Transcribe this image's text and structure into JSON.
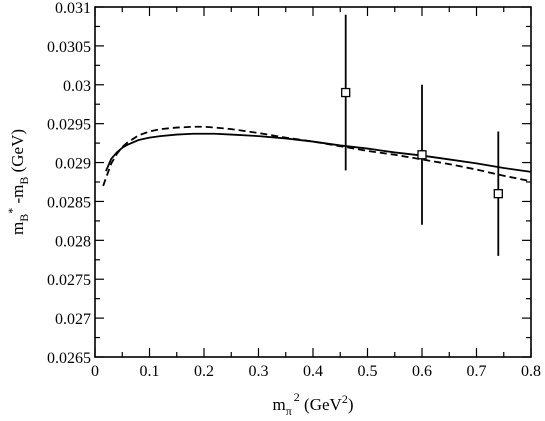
{
  "chart_data": {
    "type": "line",
    "xlim": [
      0,
      0.8
    ],
    "ylim": [
      0.0265,
      0.031
    ],
    "x_ticks": [
      "0",
      "0.1",
      "0.2",
      "0.3",
      "0.4",
      "0.5",
      "0.6",
      "0.7",
      "0.8"
    ],
    "y_ticks": [
      "0.0265",
      "0.027",
      "0.0275",
      "0.028",
      "0.0285",
      "0.029",
      "0.0295",
      "0.03",
      "0.0305",
      "0.031"
    ],
    "xlabel": {
      "base": "m",
      "sub": "π",
      "sup": "2",
      "rest": " (GeV",
      "rest_sup": "2",
      "close": ")"
    },
    "ylabel": {
      "p1": "m",
      "sub1": "B",
      "sup1": "*",
      "p2": " -m",
      "sub2": "B",
      "p3": " (GeV)"
    },
    "grid": false,
    "series": [
      {
        "style": "solid",
        "x": [
          0.02,
          0.03,
          0.04,
          0.05,
          0.06,
          0.08,
          0.1,
          0.12,
          0.15,
          0.18,
          0.2,
          0.22,
          0.25,
          0.3,
          0.35,
          0.4,
          0.45,
          0.5,
          0.55,
          0.6,
          0.65,
          0.7,
          0.75,
          0.8
        ],
        "y": [
          0.02889,
          0.02905,
          0.02913,
          0.02919,
          0.02923,
          0.02929,
          0.02932,
          0.02934,
          0.02936,
          0.02937,
          0.02937,
          0.02937,
          0.02936,
          0.02934,
          0.02931,
          0.02927,
          0.02922,
          0.02918,
          0.02913,
          0.02909,
          0.02904,
          0.02899,
          0.02893,
          0.02888
        ]
      },
      {
        "style": "dashed",
        "x": [
          0.015,
          0.02,
          0.03,
          0.04,
          0.05,
          0.06,
          0.08,
          0.1,
          0.12,
          0.15,
          0.18,
          0.2,
          0.22,
          0.25,
          0.3,
          0.35,
          0.4,
          0.45,
          0.5,
          0.55,
          0.6,
          0.65,
          0.7,
          0.75,
          0.8
        ],
        "y": [
          0.0287,
          0.0288,
          0.02899,
          0.02911,
          0.0292,
          0.02926,
          0.02935,
          0.0294,
          0.02943,
          0.02945,
          0.02946,
          0.02946,
          0.02945,
          0.02943,
          0.02938,
          0.02932,
          0.02927,
          0.02921,
          0.02915,
          0.0291,
          0.02904,
          0.02898,
          0.02891,
          0.02883,
          0.02876
        ]
      }
    ],
    "points": [
      {
        "x": 0.46,
        "y": 0.0299,
        "y_low": 0.0289,
        "y_high": 0.0309
      },
      {
        "x": 0.6,
        "y": 0.0291,
        "y_low": 0.0282,
        "y_high": 0.03
      },
      {
        "x": 0.74,
        "y": 0.0286,
        "y_low": 0.0278,
        "y_high": 0.0294
      }
    ]
  }
}
